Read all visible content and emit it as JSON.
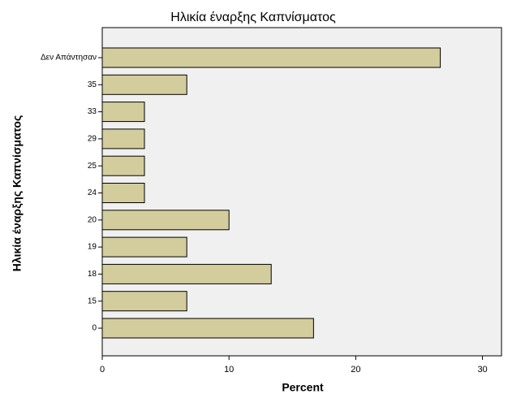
{
  "chart_data": {
    "type": "hbar",
    "title": "Ηλικία έναρξης Καπνίσματος",
    "x_label": "Percent",
    "y_label": "Ηλικία έναρξης Καπνίσματος",
    "categories": [
      "Δεν Απάντησαν",
      "35",
      "33",
      "29",
      "25",
      "24",
      "20",
      "19",
      "18",
      "15",
      "0"
    ],
    "values": [
      26.67,
      6.67,
      3.33,
      3.33,
      3.33,
      3.33,
      10,
      6.67,
      13.33,
      6.67,
      16.67
    ],
    "color": "#d3cc9c",
    "xlim": [
      0,
      31.5
    ],
    "xticks": [
      0,
      10,
      20,
      30
    ]
  }
}
